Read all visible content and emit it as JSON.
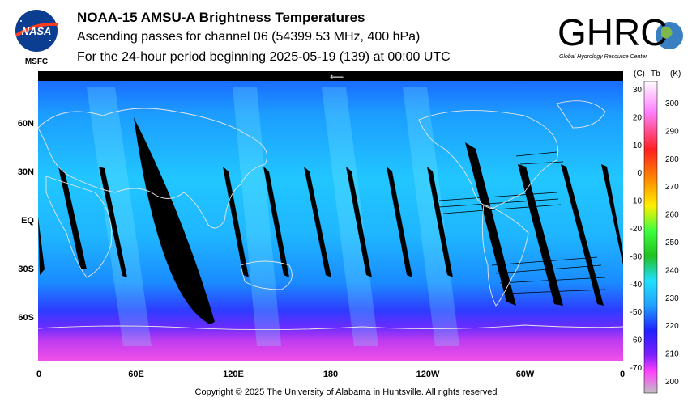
{
  "header": {
    "title": "NOAA-15 AMSU-A Brightness Temperatures",
    "subtitle1": "Ascending passes for channel 06 (54399.53 MHz, 400 hPa)",
    "subtitle2": "For the 24-hour period beginning 2025-05-19 (139) at 00:00 UTC"
  },
  "logos": {
    "nasa_text": "NASA",
    "nasa_label": "MSFC",
    "ghrc_text": "GHRC",
    "ghrc_subtext": "Global Hydrology Resource Center"
  },
  "map": {
    "lat_labels": [
      "60N",
      "30N",
      "EQ",
      "30S",
      "60S"
    ],
    "lon_labels": [
      "0",
      "60E",
      "120E",
      "180",
      "120W",
      "60W",
      "0"
    ],
    "dateline_arrow": "⟵"
  },
  "colorbar": {
    "header_c": "(C)",
    "header_tb": "Tb",
    "header_k": "(K)",
    "c_ticks": [
      "30",
      "20",
      "10",
      "0",
      "-10",
      "-20",
      "-30",
      "-40",
      "-50",
      "-60",
      "-70"
    ],
    "k_ticks": [
      "300",
      "290",
      "280",
      "270",
      "260",
      "250",
      "240",
      "230",
      "220",
      "210",
      "200"
    ]
  },
  "footer": {
    "copyright": "Copyright © 2025 The University of Alabama in Huntsville.  All rights reserved"
  },
  "colors": {
    "map_blue": "#1fa8ff",
    "map_deep": "#2a2aff",
    "map_magenta": "#e040f0",
    "gap": "#000000"
  }
}
